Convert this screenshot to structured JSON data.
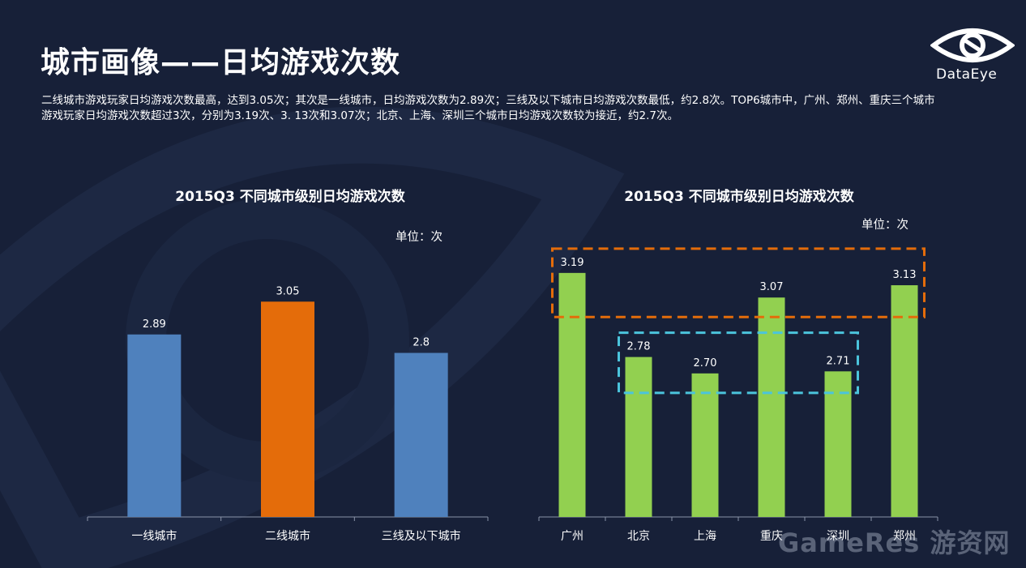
{
  "header": {
    "title": "城市画像——日均游戏次数",
    "description": "二线城市游戏玩家日均游戏次数最高，达到3.05次；其次是一线城市，日均游戏次数为2.89次；三线及以下城市日均游戏次数最低，约2.8次。TOP6城市中，广州、郑州、重庆三个城市游戏玩家日均游戏次数超过3次，分别为3.19次、3. 13次和3.07次；北京、上海、深圳三个城市日均游戏次数较为接近，约2.7次。"
  },
  "logo": {
    "text": "DataEye",
    "icon": "eye-logo-icon"
  },
  "watermark": "GameRes 游资网",
  "colors": {
    "background": "#172038",
    "blue_bar": "#4f81bd",
    "orange_bar": "#e46c0a",
    "green_bar": "#92d050",
    "orange_dash": "#e46c0a",
    "cyan_dash": "#4bc4dc"
  },
  "chart_data": [
    {
      "type": "bar",
      "title": "2015Q3 不同城市级别日均游戏次数",
      "unit": "单位：次",
      "categories": [
        "一线城市",
        "二线城市",
        "三线及以下城市"
      ],
      "values": [
        2.89,
        3.05,
        2.8
      ],
      "labels": [
        "2.89",
        "3.05",
        "2.8"
      ],
      "bar_colors": [
        "#4f81bd",
        "#e46c0a",
        "#4f81bd"
      ],
      "ylim": [
        2.0,
        3.3
      ],
      "grid": false
    },
    {
      "type": "bar",
      "title": "2015Q3 不同城市级别日均游戏次数",
      "unit": "单位：次",
      "categories": [
        "广州",
        "北京",
        "上海",
        "重庆",
        "深圳",
        "郑州"
      ],
      "values": [
        3.19,
        2.78,
        2.7,
        3.07,
        2.71,
        3.13
      ],
      "labels": [
        "3.19",
        "2.78",
        "2.70",
        "3.07",
        "2.71",
        "3.13"
      ],
      "bar_colors": [
        "#92d050",
        "#92d050",
        "#92d050",
        "#92d050",
        "#92d050",
        "#92d050"
      ],
      "ylim": [
        2.0,
        3.3
      ],
      "grid": false,
      "highlights": [
        {
          "categories": [
            "广州",
            "重庆",
            "郑州"
          ],
          "color": "#e46c0a"
        },
        {
          "categories": [
            "北京",
            "上海",
            "深圳"
          ],
          "color": "#4bc4dc"
        }
      ]
    }
  ]
}
